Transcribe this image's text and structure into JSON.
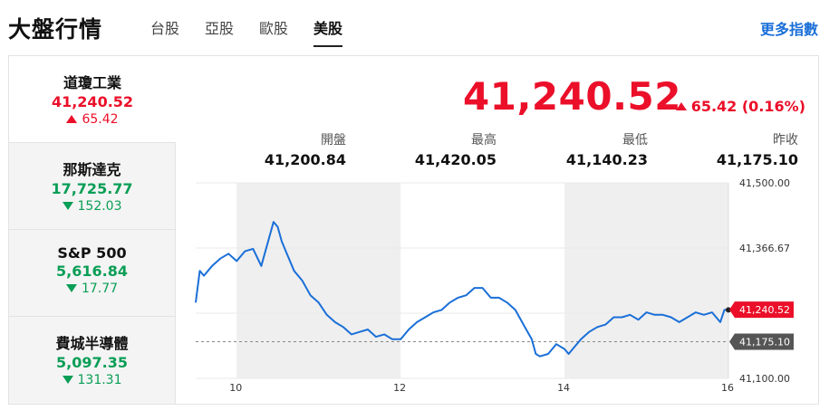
{
  "header": {
    "title": "大盤行情",
    "tabs": [
      {
        "label": "台股",
        "active": false
      },
      {
        "label": "亞股",
        "active": false
      },
      {
        "label": "歐股",
        "active": false
      },
      {
        "label": "美股",
        "active": true
      }
    ],
    "more_link": "更多指數"
  },
  "sidebar": {
    "items": [
      {
        "name": "道瓊工業",
        "value": "41,240.52",
        "change": "65.42",
        "direction": "up"
      },
      {
        "name": "那斯達克",
        "value": "17,725.77",
        "change": "152.03",
        "direction": "down"
      },
      {
        "name": "S&P 500",
        "value": "5,616.84",
        "change": "17.77",
        "direction": "down"
      },
      {
        "name": "費城半導體",
        "value": "5,097.35",
        "change": "131.31",
        "direction": "down"
      }
    ]
  },
  "main": {
    "price": "41,240.52",
    "change": "65.42 (0.16%)",
    "stats": [
      {
        "label": "開盤",
        "value": "41,200.84"
      },
      {
        "label": "最高",
        "value": "41,420.05"
      },
      {
        "label": "最低",
        "value": "41,140.23"
      },
      {
        "label": "昨收",
        "value": "41,175.10"
      }
    ]
  },
  "colors": {
    "up": "#eb0f29",
    "down": "#0a9e56",
    "line": "#1a6fd8",
    "link": "#1a6fd8"
  },
  "chart_data": {
    "type": "line",
    "y_ticks": [
      "41,500.00",
      "41,366.67",
      "41,100.00"
    ],
    "ylim": [
      41100,
      41500
    ],
    "x_ticks": [
      "10",
      "12",
      "14",
      "16"
    ],
    "xlim": [
      9.5,
      16
    ],
    "shaded_hours": [
      [
        10,
        12
      ],
      [
        14,
        16
      ]
    ],
    "current_value": 41240.52,
    "current_label": "41,240.52",
    "reference_value": 41175.1,
    "reference_label": "41,175.10",
    "series": [
      {
        "x": [
          9.5,
          9.55,
          9.6,
          9.7,
          9.8,
          9.9,
          10.0,
          10.1,
          10.2,
          10.3,
          10.4,
          10.45,
          10.5,
          10.55,
          10.6,
          10.7,
          10.8,
          10.9,
          11.0,
          11.1,
          11.2,
          11.3,
          11.4,
          11.5,
          11.6,
          11.7,
          11.8,
          11.9,
          12.0,
          12.1,
          12.2,
          12.3,
          12.4,
          12.5,
          12.6,
          12.7,
          12.8,
          12.9,
          13.0,
          13.1,
          13.2,
          13.3,
          13.4,
          13.5,
          13.6,
          13.65,
          13.7,
          13.8,
          13.9,
          14.0,
          14.05,
          14.1,
          14.2,
          14.3,
          14.4,
          14.5,
          14.6,
          14.7,
          14.8,
          14.9,
          15.0,
          15.1,
          15.2,
          15.3,
          15.4,
          15.5,
          15.6,
          15.7,
          15.8,
          15.9,
          15.95,
          16.0
        ],
        "y": [
          41255,
          41320,
          41310,
          41330,
          41345,
          41355,
          41340,
          41360,
          41365,
          41330,
          41390,
          41420,
          41410,
          41380,
          41360,
          41320,
          41300,
          41270,
          41255,
          41230,
          41215,
          41205,
          41190,
          41195,
          41200,
          41185,
          41190,
          41180,
          41180,
          41200,
          41215,
          41225,
          41235,
          41240,
          41255,
          41265,
          41270,
          41285,
          41285,
          41265,
          41265,
          41255,
          41240,
          41210,
          41180,
          41150,
          41145,
          41150,
          41170,
          41160,
          41150,
          41160,
          41180,
          41195,
          41205,
          41210,
          41225,
          41225,
          41230,
          41220,
          41235,
          41230,
          41230,
          41225,
          41215,
          41225,
          41235,
          41230,
          41235,
          41215,
          41240,
          41240
        ]
      }
    ]
  }
}
